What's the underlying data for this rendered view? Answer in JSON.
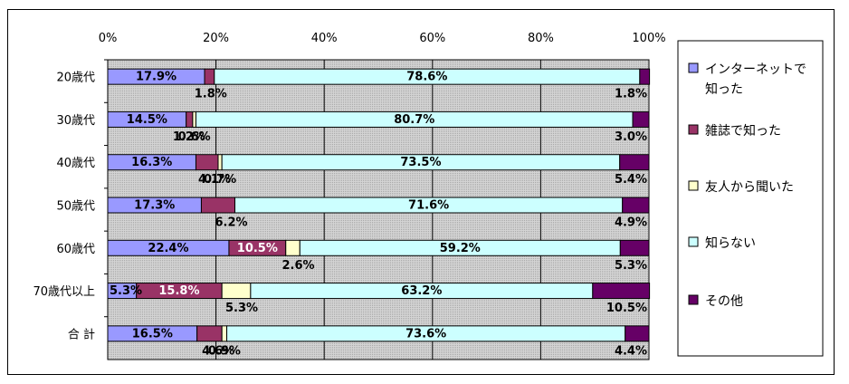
{
  "chart_data": {
    "type": "bar",
    "stacked": true,
    "horizontal": true,
    "percent": true,
    "xlim": [
      0,
      100
    ],
    "x_ticks": [
      "0%",
      "20%",
      "40%",
      "60%",
      "80%",
      "100%"
    ],
    "categories": [
      "20歳代",
      "30歳代",
      "40歳代",
      "50歳代",
      "60歳代",
      "70歳代以上",
      "合 計"
    ],
    "series": [
      {
        "name": "インターネットで知った",
        "color": "#9999ff",
        "values": [
          17.9,
          14.5,
          16.3,
          17.3,
          22.4,
          5.3,
          16.5
        ],
        "labels": [
          "17.9%",
          "14.5%",
          "16.3%",
          "17.3%",
          "22.4%",
          "5.3%",
          "16.5%"
        ]
      },
      {
        "name": "雑誌で知った",
        "color": "#993366",
        "values": [
          1.8,
          1.2,
          4.1,
          6.2,
          10.5,
          15.8,
          4.6
        ],
        "labels": [
          "1.8%",
          "1.2%",
          "4.1%",
          "6.2%",
          "10.5%",
          "15.8%",
          "4.6%"
        ]
      },
      {
        "name": "友人から聞いた",
        "color": "#ffffcc",
        "values": [
          0.0,
          0.6,
          0.7,
          0.0,
          2.6,
          5.3,
          0.9
        ],
        "labels": [
          "",
          "0.6%",
          "0.7%",
          "",
          "2.6%",
          "5.3%",
          "0.9%"
        ]
      },
      {
        "name": "知らない",
        "color": "#ccffff",
        "values": [
          78.6,
          80.7,
          73.5,
          71.6,
          59.2,
          63.2,
          73.6
        ],
        "labels": [
          "78.6%",
          "80.7%",
          "73.5%",
          "71.6%",
          "59.2%",
          "63.2%",
          "73.6%"
        ]
      },
      {
        "name": "その他",
        "color": "#660066",
        "values": [
          1.8,
          3.0,
          5.4,
          4.9,
          5.3,
          10.5,
          4.4
        ],
        "labels": [
          "1.8%",
          "3.0%",
          "5.4%",
          "4.9%",
          "5.3%",
          "10.5%",
          "4.4%"
        ]
      }
    ],
    "legend": {
      "position": "right",
      "lines": [
        [
          "インターネットで",
          "知った"
        ],
        [
          "雑誌で知った"
        ],
        [
          "友人から聞いた"
        ],
        [
          "知らない"
        ],
        [
          "その他"
        ]
      ]
    },
    "plot_background": "#c0c0c0",
    "grid": true
  }
}
